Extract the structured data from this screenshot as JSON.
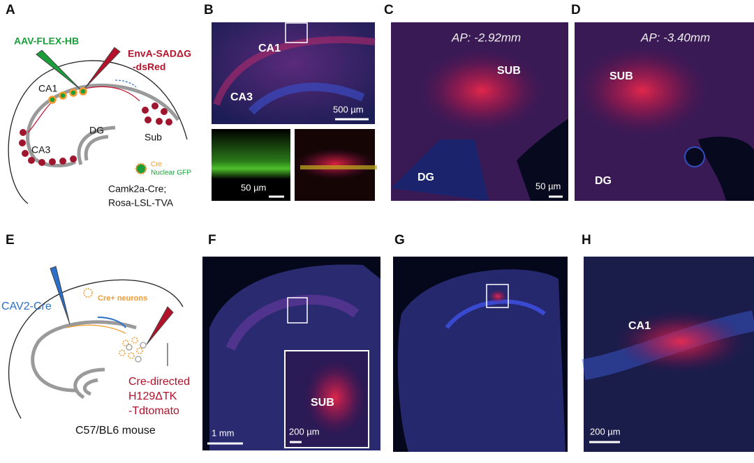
{
  "panels": [
    {
      "label": "A",
      "texts": [
        "AAV-FLEX-HB",
        "EnvA-SADΔG",
        "-dsRed",
        "CA1",
        "DG",
        "CA3",
        "Sub",
        "Cre",
        "Nuclear GFP",
        "Camk2a-Cre;",
        "Rosa-LSL-TVA"
      ]
    },
    {
      "label": "B",
      "texts": [
        "CA1",
        "CA3",
        "500 µm",
        "50 µm"
      ]
    },
    {
      "label": "C",
      "texts": [
        "AP: -2.92mm",
        "SUB",
        "DG",
        "50 µm"
      ]
    },
    {
      "label": "D",
      "texts": [
        "AP: -3.40mm",
        "SUB",
        "DG"
      ]
    },
    {
      "label": "E",
      "texts": [
        "CAV2-Cre",
        "Cre+ neurons",
        "Cre-directed",
        "H129ΔTK",
        "-Tdtomato",
        "C57/BL6 mouse"
      ]
    },
    {
      "label": "F",
      "texts": [
        "SUB",
        "1 mm",
        "200 µm"
      ]
    },
    {
      "label": "G"
    },
    {
      "label": "H",
      "texts": [
        "CA1",
        "200 µm"
      ]
    }
  ]
}
